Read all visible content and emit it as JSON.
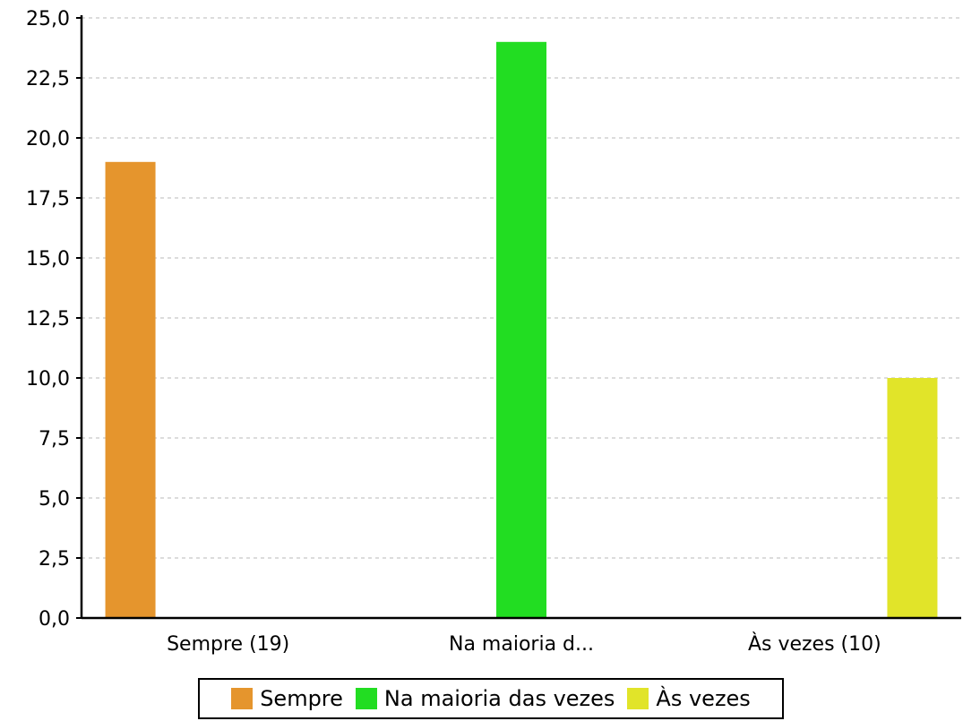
{
  "chart_data": {
    "type": "bar",
    "categories": [
      "Sempre (19)",
      "Na maioria d...",
      "Às vezes (10)"
    ],
    "series": [
      {
        "name": "Sempre",
        "color": "#E5952D",
        "values": [
          19,
          null,
          null
        ]
      },
      {
        "name": "Na maioria das vezes",
        "color": "#22DD22",
        "values": [
          null,
          24,
          null
        ]
      },
      {
        "name": "Às vezes",
        "color": "#E1E429",
        "values": [
          null,
          null,
          10
        ]
      }
    ],
    "ylim": [
      0,
      25
    ],
    "yticks": [
      "0,0",
      "2,5",
      "5,0",
      "7,5",
      "10,0",
      "12,5",
      "15,0",
      "17,5",
      "20,0",
      "22,5",
      "25,0"
    ],
    "grid": true,
    "legend_position": "bottom"
  }
}
